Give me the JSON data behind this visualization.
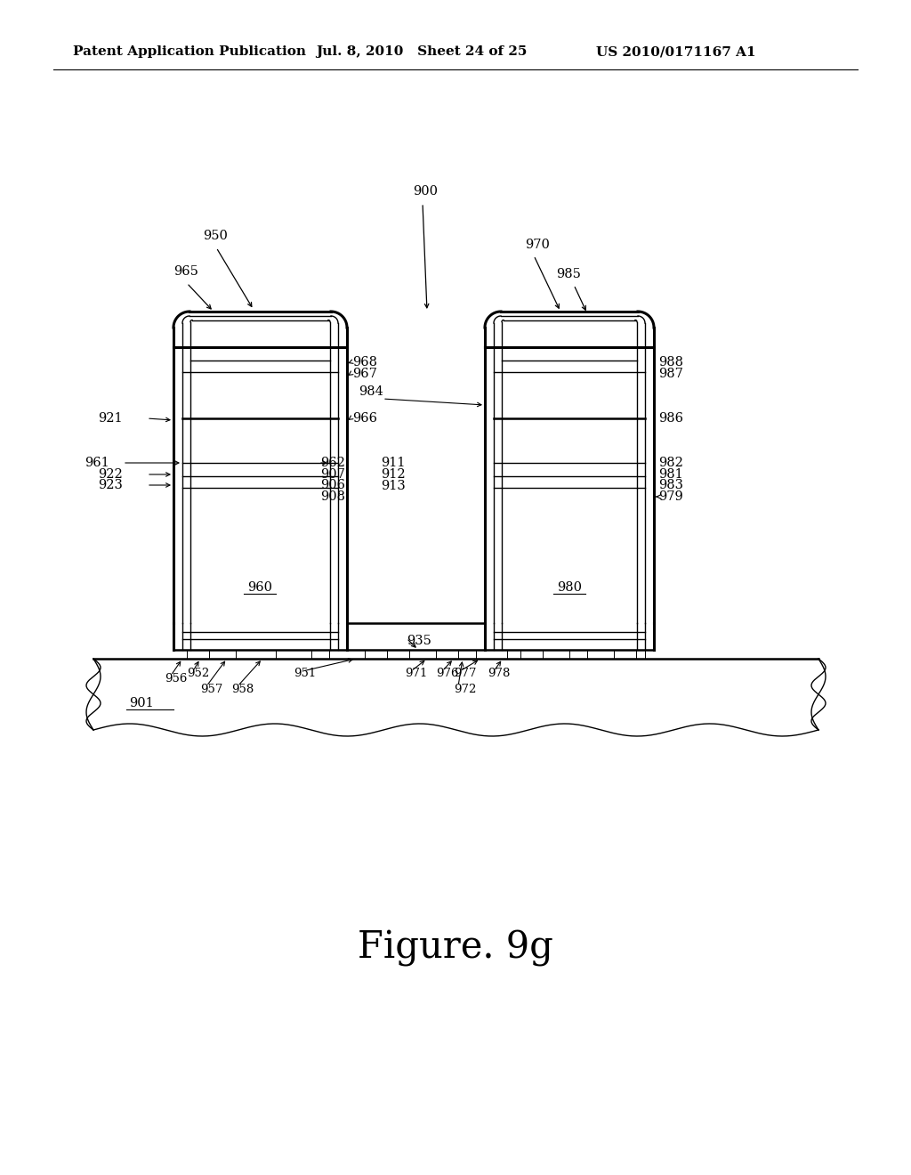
{
  "header_left": "Patent Application Publication",
  "header_mid": "Jul. 8, 2010   Sheet 24 of 25",
  "header_right": "US 2010/0171167 A1",
  "figure_label": "Figure. 9g",
  "bg_color": "#ffffff",
  "line_color": "#000000",
  "label_fontsize": 10.5,
  "header_fontsize": 11,
  "figure_label_fontsize": 30
}
